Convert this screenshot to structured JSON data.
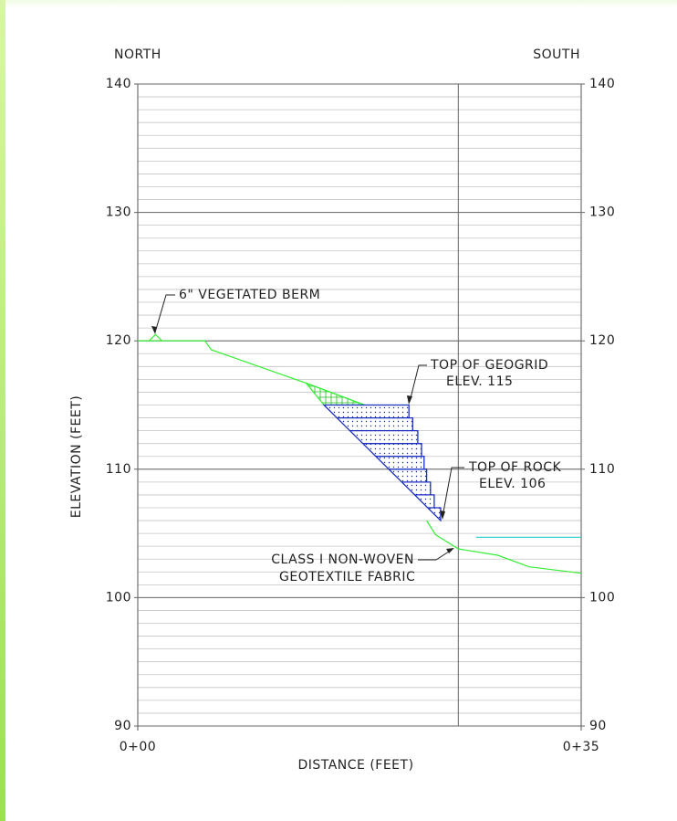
{
  "chart_data": {
    "type": "line",
    "left_label": "NORTH",
    "right_label": "SOUTH",
    "xlabel": "DISTANCE (FEET)",
    "ylabel": "ELEVATION (FEET)",
    "xlim": [
      0,
      35
    ],
    "ylim": [
      90,
      140
    ],
    "xticks": [
      {
        "value": 0,
        "label": "0+00"
      },
      {
        "value": 35,
        "label": "0+35"
      }
    ],
    "yticks": [
      90,
      100,
      110,
      120,
      130,
      140
    ],
    "minor_step": 1,
    "vline": 25.3,
    "grid": true,
    "series": [
      {
        "color": "#33ee33",
        "x": [
          0,
          5.3,
          5.8,
          13.3,
          17.9
        ],
        "values": [
          120,
          120,
          119.3,
          116.7,
          115
        ]
      },
      {
        "color": "#33ee33",
        "x": [
          0.9,
          1.4,
          1.9
        ],
        "values": [
          120,
          120.5,
          120
        ]
      },
      {
        "color": "#33ee33",
        "x": [
          22.8,
          23.5,
          25.3,
          28.4,
          30.9,
          35
        ],
        "values": [
          106,
          104.9,
          103.8,
          103.3,
          102.4,
          101.9
        ]
      },
      {
        "color": "#22cccc",
        "x": [
          26.7,
          35
        ],
        "values": [
          104.7,
          104.7
        ]
      },
      {
        "color": "#33ee33",
        "closed": true,
        "fill": "hatch",
        "x": [
          13.3,
          17.9,
          14.7
        ],
        "values": [
          116.7,
          115,
          115
        ]
      },
      {
        "color": "#1a2fbf",
        "closed": true,
        "fill": "dots",
        "x": [
          14.7,
          21.4,
          21.4,
          15.7,
          21.7,
          21.7,
          16.7,
          22.1,
          22.1,
          17.8,
          22.4,
          22.4,
          18.8,
          22.6,
          22.6,
          19.8,
          22.8,
          22.8,
          20.8,
          23.1,
          23.1,
          21.9,
          23.4,
          23.4,
          22.9,
          23.9,
          23.9
        ],
        "values": [
          115,
          115,
          114,
          114,
          114,
          113,
          113,
          113,
          112,
          112,
          112,
          111,
          111,
          111,
          110,
          110,
          110,
          109,
          109,
          109,
          108,
          108,
          108,
          107,
          107,
          107,
          106
        ]
      }
    ],
    "annotations": [
      "6\" VEGETATED BERM",
      "TOP OF GEOGRID",
      "ELEV. 115",
      "TOP OF ROCK",
      "ELEV. 106",
      "CLASS I NON-WOVEN",
      "GEOTEXTILE FABRIC"
    ]
  }
}
